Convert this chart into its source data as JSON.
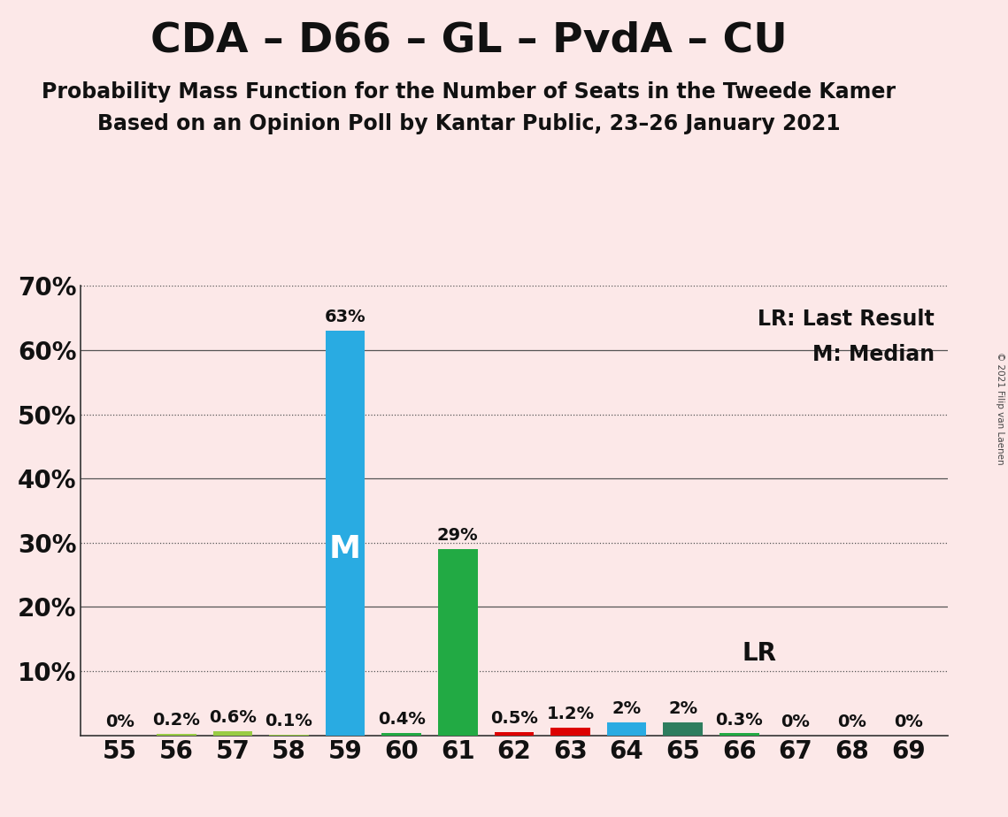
{
  "title": "CDA – D66 – GL – PvdA – CU",
  "subtitle1": "Probability Mass Function for the Number of Seats in the Tweede Kamer",
  "subtitle2": "Based on an Opinion Poll by Kantar Public, 23–26 January 2021",
  "copyright": "© 2021 Filip van Laenen",
  "legend_lr": "LR: Last Result",
  "legend_m": "M: Median",
  "seats": [
    55,
    56,
    57,
    58,
    59,
    60,
    61,
    62,
    63,
    64,
    65,
    66,
    67,
    68,
    69
  ],
  "values": [
    0.0,
    0.2,
    0.6,
    0.1,
    63.0,
    0.4,
    29.0,
    0.5,
    1.2,
    2.0,
    2.0,
    0.3,
    0.0,
    0.0,
    0.0
  ],
  "bar_colors": [
    "#fce8e8",
    "#99cc44",
    "#99cc44",
    "#99cc44",
    "#29abe2",
    "#22aa44",
    "#22aa44",
    "#dd0000",
    "#dd0000",
    "#29abe2",
    "#2e7d5e",
    "#22aa44",
    "#fce8e8",
    "#fce8e8",
    "#fce8e8"
  ],
  "bar_labels": [
    "0%",
    "0.2%",
    "0.6%",
    "0.1%",
    "63%",
    "0.4%",
    "29%",
    "0.5%",
    "1.2%",
    "2%",
    "2%",
    "0.3%",
    "0%",
    "0%",
    "0%"
  ],
  "median_seat": 59,
  "lr_seat": 65,
  "background_color": "#fce8e8",
  "ylim_max": 70,
  "ytick_positions": [
    0,
    10,
    20,
    30,
    40,
    50,
    60,
    70
  ],
  "ytick_labels": [
    "",
    "10%",
    "20%",
    "30%",
    "40%",
    "50%",
    "60%",
    "70%"
  ],
  "dotted_lines": [
    10,
    30,
    50,
    70
  ],
  "solid_lines": [
    20,
    40,
    60
  ],
  "title_fontsize": 34,
  "subtitle_fontsize": 17,
  "bar_width": 0.7,
  "text_color": "#111111"
}
